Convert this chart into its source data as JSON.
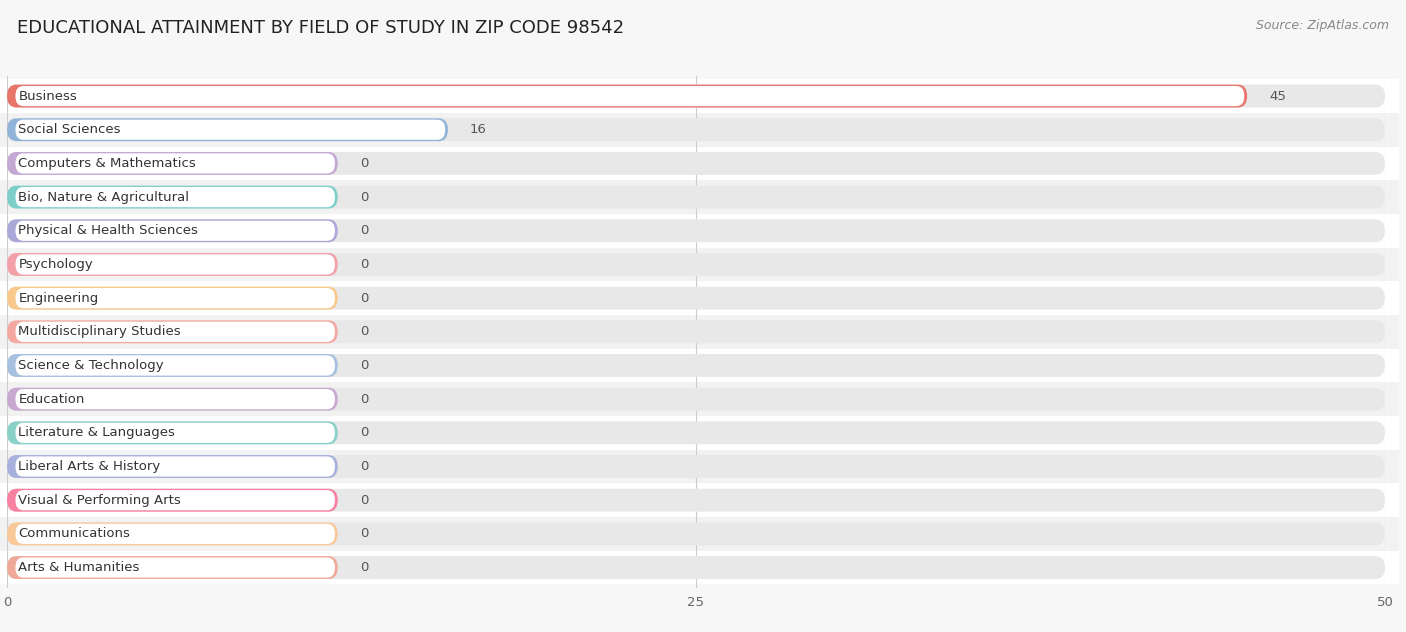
{
  "title": "EDUCATIONAL ATTAINMENT BY FIELD OF STUDY IN ZIP CODE 98542",
  "source": "Source: ZipAtlas.com",
  "categories": [
    "Business",
    "Social Sciences",
    "Computers & Mathematics",
    "Bio, Nature & Agricultural",
    "Physical & Health Sciences",
    "Psychology",
    "Engineering",
    "Multidisciplinary Studies",
    "Science & Technology",
    "Education",
    "Literature & Languages",
    "Liberal Arts & History",
    "Visual & Performing Arts",
    "Communications",
    "Arts & Humanities"
  ],
  "values": [
    45,
    16,
    0,
    0,
    0,
    0,
    0,
    0,
    0,
    0,
    0,
    0,
    0,
    0,
    0
  ],
  "bar_colors": [
    "#E8756A",
    "#92B4D8",
    "#C4A8D4",
    "#7ECFCA",
    "#A9A8D8",
    "#F4A0A8",
    "#F8C88C",
    "#F4A8A0",
    "#A8C0E0",
    "#C8A8D0",
    "#88D0C8",
    "#A8B0DC",
    "#F880A0",
    "#F8C898",
    "#F0A898"
  ],
  "zero_bar_widths": [
    10.5,
    10.5,
    10.5,
    10.5,
    10.5,
    8.5,
    10.5,
    10.5,
    10.5,
    8.5,
    10.5,
    10.5,
    10.5,
    10.5,
    10.5
  ],
  "xlim": [
    0,
    50
  ],
  "xticks": [
    0,
    25,
    50
  ],
  "background_color": "#f7f7f7",
  "bar_background_color": "#e8e8e8",
  "row_bg_colors": [
    "#ffffff",
    "#f2f2f2"
  ],
  "title_fontsize": 13,
  "label_fontsize": 9.5,
  "source_fontsize": 9,
  "value_label_color": "#555555"
}
